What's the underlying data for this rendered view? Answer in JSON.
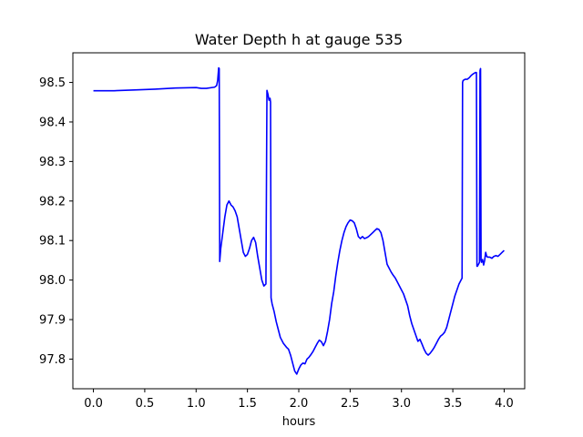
{
  "chart_data": {
    "type": "line",
    "title": "Water Depth h at gauge 535",
    "xlabel": "hours",
    "ylabel": "",
    "xlim": [
      -0.2,
      4.2
    ],
    "ylim": [
      97.725,
      98.575
    ],
    "grid": false,
    "xticks": [
      {
        "value": 0.0,
        "label": "0.0"
      },
      {
        "value": 0.5,
        "label": "0.5"
      },
      {
        "value": 1.0,
        "label": "1.0"
      },
      {
        "value": 1.5,
        "label": "1.5"
      },
      {
        "value": 2.0,
        "label": "2.0"
      },
      {
        "value": 2.5,
        "label": "2.5"
      },
      {
        "value": 3.0,
        "label": "3.0"
      },
      {
        "value": 3.5,
        "label": "3.5"
      },
      {
        "value": 4.0,
        "label": "4.0"
      }
    ],
    "yticks": [
      {
        "value": 97.8,
        "label": "97.8"
      },
      {
        "value": 97.9,
        "label": "97.9"
      },
      {
        "value": 98.0,
        "label": "98.0"
      },
      {
        "value": 98.1,
        "label": "98.1"
      },
      {
        "value": 98.2,
        "label": "98.2"
      },
      {
        "value": 98.3,
        "label": "98.3"
      },
      {
        "value": 98.4,
        "label": "98.4"
      },
      {
        "value": 98.5,
        "label": "98.5"
      }
    ],
    "series": [
      {
        "color": "#0000ff",
        "x": [
          0.0,
          0.2,
          0.4,
          0.6,
          0.8,
          1.0,
          1.05,
          1.1,
          1.18,
          1.2,
          1.21,
          1.22,
          1.225,
          1.23,
          1.24,
          1.26,
          1.28,
          1.3,
          1.32,
          1.34,
          1.36,
          1.38,
          1.4,
          1.42,
          1.44,
          1.46,
          1.48,
          1.5,
          1.52,
          1.54,
          1.56,
          1.58,
          1.6,
          1.62,
          1.64,
          1.66,
          1.68,
          1.69,
          1.695,
          1.7,
          1.71,
          1.72,
          1.725,
          1.73,
          1.74,
          1.76,
          1.78,
          1.8,
          1.82,
          1.85,
          1.88,
          1.9,
          1.92,
          1.94,
          1.96,
          1.98,
          2.0,
          2.02,
          2.04,
          2.06,
          2.08,
          2.1,
          2.12,
          2.14,
          2.16,
          2.18,
          2.2,
          2.22,
          2.24,
          2.26,
          2.28,
          2.3,
          2.32,
          2.34,
          2.36,
          2.38,
          2.4,
          2.42,
          2.44,
          2.46,
          2.48,
          2.5,
          2.52,
          2.54,
          2.56,
          2.58,
          2.6,
          2.62,
          2.64,
          2.66,
          2.68,
          2.7,
          2.72,
          2.74,
          2.76,
          2.78,
          2.8,
          2.82,
          2.84,
          2.86,
          2.88,
          2.9,
          2.92,
          2.94,
          2.96,
          2.98,
          3.0,
          3.02,
          3.04,
          3.06,
          3.08,
          3.1,
          3.12,
          3.14,
          3.16,
          3.18,
          3.2,
          3.22,
          3.24,
          3.26,
          3.28,
          3.3,
          3.32,
          3.34,
          3.36,
          3.38,
          3.4,
          3.42,
          3.44,
          3.46,
          3.48,
          3.5,
          3.52,
          3.54,
          3.56,
          3.58,
          3.59,
          3.595,
          3.6,
          3.62,
          3.64,
          3.66,
          3.68,
          3.7,
          3.72,
          3.73,
          3.735,
          3.74,
          3.75,
          3.76,
          3.765,
          3.77,
          3.775,
          3.78,
          3.785,
          3.79,
          3.8,
          3.81,
          3.82,
          3.83,
          3.84,
          3.86,
          3.88,
          3.9,
          3.92,
          3.94,
          3.96,
          3.98,
          4.0
        ],
        "y": [
          98.479,
          98.479,
          98.481,
          98.483,
          98.486,
          98.487,
          98.485,
          98.485,
          98.488,
          98.492,
          98.505,
          98.537,
          98.535,
          98.047,
          98.08,
          98.12,
          98.16,
          98.19,
          98.2,
          98.19,
          98.185,
          98.175,
          98.16,
          98.13,
          98.1,
          98.07,
          98.06,
          98.065,
          98.08,
          98.1,
          98.108,
          98.095,
          98.06,
          98.03,
          98.0,
          97.985,
          97.99,
          98.48,
          98.475,
          98.47,
          98.455,
          98.46,
          98.45,
          97.955,
          97.94,
          97.92,
          97.895,
          97.875,
          97.855,
          97.84,
          97.83,
          97.825,
          97.81,
          97.79,
          97.77,
          97.762,
          97.775,
          97.785,
          97.79,
          97.788,
          97.8,
          97.805,
          97.812,
          97.82,
          97.83,
          97.84,
          97.848,
          97.844,
          97.834,
          97.845,
          97.87,
          97.9,
          97.94,
          97.97,
          98.01,
          98.045,
          98.075,
          98.1,
          98.12,
          98.135,
          98.145,
          98.152,
          98.15,
          98.145,
          98.13,
          98.11,
          98.105,
          98.11,
          98.105,
          98.107,
          98.11,
          98.115,
          98.12,
          98.125,
          98.13,
          98.128,
          98.12,
          98.1,
          98.07,
          98.04,
          98.03,
          98.02,
          98.012,
          98.005,
          97.995,
          97.985,
          97.975,
          97.965,
          97.95,
          97.935,
          97.91,
          97.89,
          97.875,
          97.86,
          97.845,
          97.85,
          97.838,
          97.825,
          97.815,
          97.81,
          97.815,
          97.822,
          97.83,
          97.84,
          97.85,
          97.858,
          97.862,
          97.868,
          97.88,
          97.9,
          97.92,
          97.94,
          97.96,
          97.975,
          97.99,
          98.0,
          98.005,
          98.5,
          98.505,
          98.508,
          98.508,
          98.512,
          98.518,
          98.522,
          98.525,
          98.525,
          98.035,
          98.035,
          98.04,
          98.045,
          98.53,
          98.535,
          98.05,
          98.045,
          98.05,
          98.052,
          98.038,
          98.05,
          98.07,
          98.06,
          98.058,
          98.058,
          98.055,
          98.06,
          98.062,
          98.06,
          98.065,
          98.07,
          98.075
        ]
      }
    ]
  }
}
